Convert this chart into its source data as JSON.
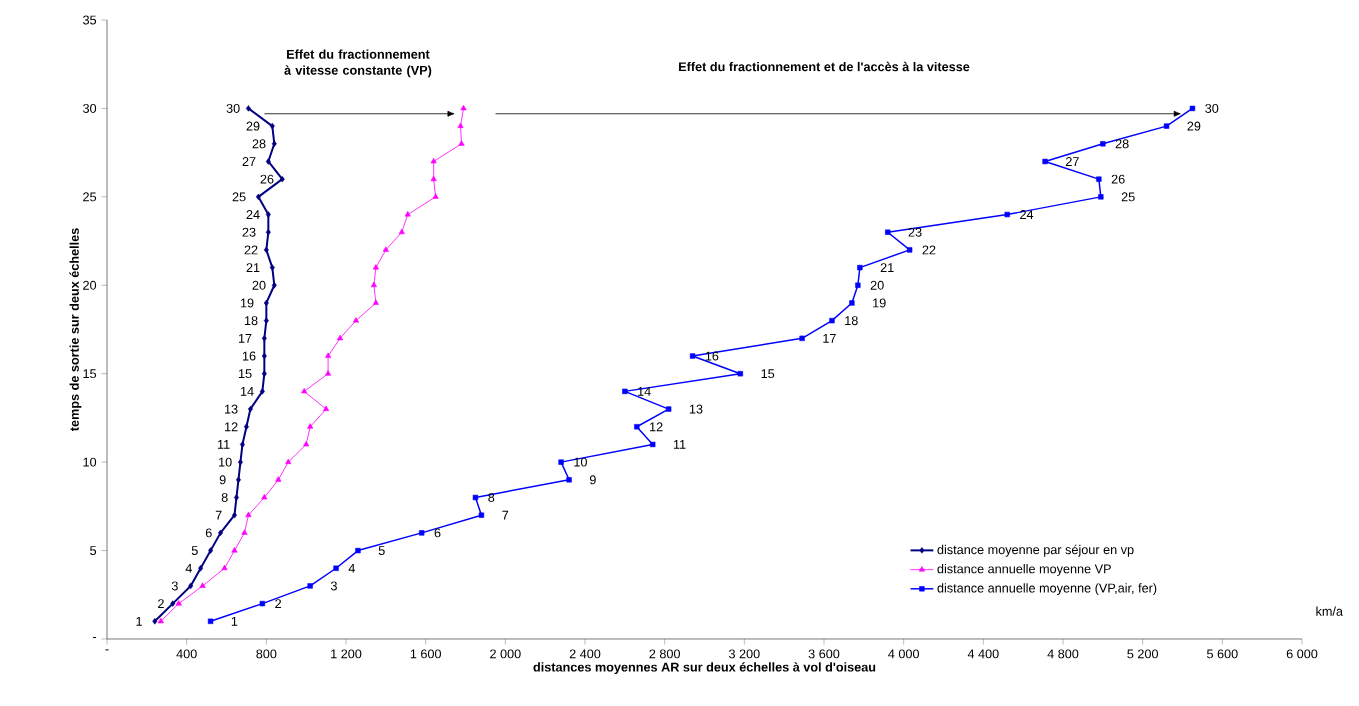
{
  "chart_data": {
    "type": "line",
    "xlabel": "distances moyennes AR sur deux échelles à vol d'oiseau",
    "ylabel": "temps de sortie sur deux échelles",
    "annotations": [
      "Effet du fractionnement à vitesse constante (VP)",
      "Effet du fractionnement et de l'accès à la vitesse",
      "km/a"
    ],
    "xlim": [
      0,
      6000
    ],
    "ylim": [
      0,
      35
    ],
    "xticks": [
      {
        "value": 0,
        "label": "-"
      },
      400,
      800,
      {
        "value": 1200,
        "label": "1 200"
      },
      {
        "value": 1600,
        "label": "1 600"
      },
      {
        "value": 2000,
        "label": "2 000"
      },
      {
        "value": 2400,
        "label": "2 400"
      },
      {
        "value": 2800,
        "label": "2 800"
      },
      {
        "value": 3200,
        "label": "3 200"
      },
      {
        "value": 3600,
        "label": "3 600"
      },
      {
        "value": 4000,
        "label": "4 000"
      },
      {
        "value": 4400,
        "label": "4 400"
      },
      {
        "value": 4800,
        "label": "4 800"
      },
      {
        "value": 5200,
        "label": "5 200"
      },
      {
        "value": 5600,
        "label": "5 600"
      },
      {
        "value": 6000,
        "label": "6 000"
      }
    ],
    "yticks": [
      {
        "value": 0,
        "label": "-"
      },
      5,
      10,
      15,
      20,
      25,
      30,
      35
    ],
    "legend": "bottom right",
    "series": [
      {
        "name": "distance moyenne par séjour en vp",
        "color": "#000080",
        "marker": "diamond",
        "x": [
          240,
          330,
          420,
          470,
          520,
          570,
          640,
          650,
          660,
          670,
          680,
          700,
          720,
          780,
          790,
          790,
          790,
          800,
          800,
          840,
          830,
          800,
          810,
          810,
          760,
          880,
          810,
          840,
          830,
          710
        ],
        "values": [
          1,
          2,
          3,
          4,
          5,
          6,
          7,
          8,
          9,
          10,
          11,
          12,
          13,
          14,
          15,
          16,
          17,
          18,
          19,
          20,
          21,
          22,
          23,
          24,
          25,
          26,
          27,
          28,
          29,
          30
        ],
        "value_labels": [
          "1",
          "2",
          "3",
          "4",
          "5",
          "6",
          "7",
          "8",
          "9",
          "10",
          "11",
          "12",
          "13",
          "14",
          "15",
          "16",
          "17",
          "18",
          "19",
          "20",
          "21",
          "22",
          "23",
          "24",
          "25",
          "26",
          "27",
          "28",
          "29",
          "30"
        ]
      },
      {
        "name": "distance annuelle moyenne VP",
        "color": "#ff00ff",
        "marker": "triangle",
        "x": [
          270,
          360,
          480,
          590,
          640,
          690,
          710,
          790,
          860,
          910,
          1000,
          1020,
          1100,
          990,
          1110,
          1110,
          1170,
          1250,
          1350,
          1340,
          1350,
          1400,
          1480,
          1510,
          1650,
          1640,
          1640,
          1780,
          1775,
          1790
        ],
        "values": [
          1,
          2,
          3,
          4,
          5,
          6,
          7,
          8,
          9,
          10,
          11,
          12,
          13,
          14,
          15,
          16,
          17,
          18,
          19,
          20,
          21,
          22,
          23,
          24,
          25,
          26,
          27,
          28,
          29,
          30
        ]
      },
      {
        "name": "distance annuelle moyenne (VP,air, fer)",
        "color": "#0000ff",
        "marker": "square",
        "x": [
          520,
          780,
          1020,
          1150,
          1260,
          1580,
          1880,
          1850,
          2320,
          2280,
          2740,
          2660,
          2820,
          2600,
          3180,
          2940,
          3490,
          3640,
          3740,
          3770,
          3780,
          4030,
          3920,
          4520,
          4990,
          4980,
          4710,
          5000,
          5320,
          5450
        ],
        "values": [
          1,
          2,
          3,
          4,
          5,
          6,
          7,
          8,
          9,
          10,
          11,
          12,
          13,
          14,
          15,
          16,
          17,
          18,
          19,
          20,
          21,
          22,
          23,
          24,
          25,
          26,
          27,
          28,
          29,
          30
        ],
        "value_labels": [
          "1",
          "2",
          "3",
          "4",
          "5",
          "6",
          "7",
          "8",
          "9",
          "10",
          "11",
          "12",
          "13",
          "14",
          "15",
          "16",
          "17",
          "18",
          "19",
          "20",
          "21",
          "22",
          "23",
          "24",
          "25",
          "26",
          "27",
          "28",
          "29",
          "30"
        ]
      }
    ]
  }
}
